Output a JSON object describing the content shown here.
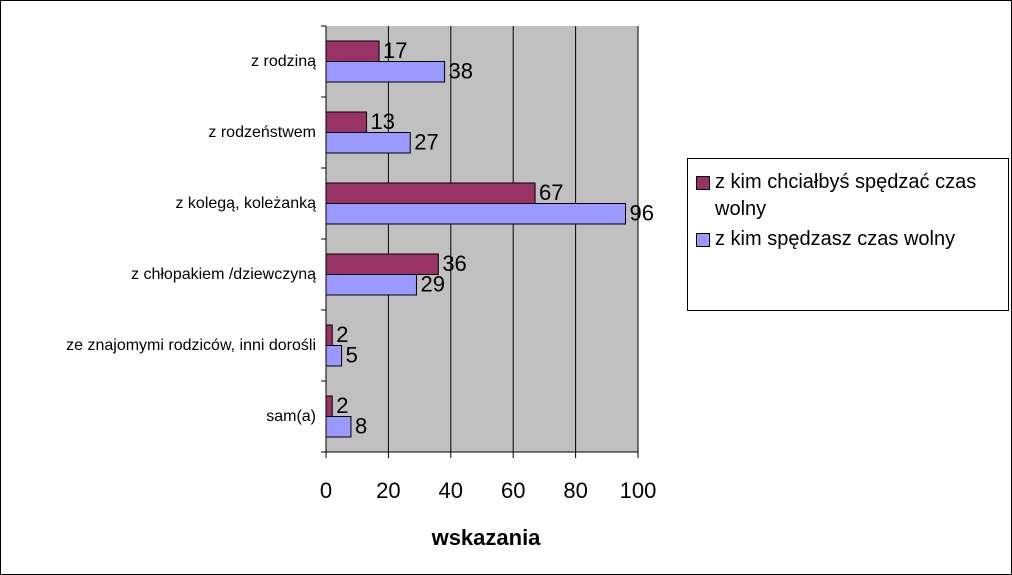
{
  "chart_data": {
    "type": "bar",
    "orientation": "horizontal",
    "categories": [
      "z rodziną",
      "z rodzeństwem",
      "z kolegą, koleżanką",
      "z chłopakiem /dziewczyną",
      "ze znajomymi rodziców, inni dorośli",
      "sam(a)"
    ],
    "series": [
      {
        "name": "z kim chciałbyś spędzać czas wolny",
        "color": "#993366",
        "values": [
          17,
          13,
          67,
          36,
          2,
          2
        ]
      },
      {
        "name": "z kim spędzasz czas wolny",
        "color": "#9999ff",
        "values": [
          38,
          27,
          96,
          29,
          5,
          8
        ]
      }
    ],
    "xlabel": "wskazania",
    "xlim": [
      0,
      100
    ],
    "xticks": [
      0,
      20,
      40,
      60,
      80,
      100
    ],
    "grid": true,
    "legend": "right"
  }
}
